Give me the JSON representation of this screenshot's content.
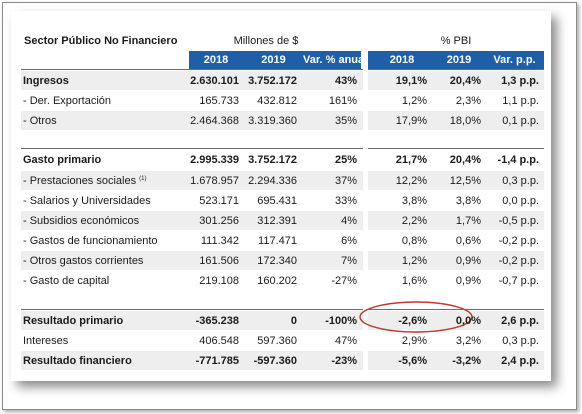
{
  "table": {
    "title": "Sector Público No Financiero",
    "group_millones": "Millones de $",
    "group_pbi": "% PBI",
    "columns": [
      "2018",
      "2019",
      "Var. % anual",
      "2018",
      "2019",
      "Var. p.p."
    ],
    "rows": [
      {
        "label": "Ingresos",
        "bold": true,
        "cells": [
          "2.630.101",
          "3.752.172",
          "43%",
          "19,1%",
          "20,4%",
          "1,3 p.p."
        ]
      },
      {
        "label": "- Der. Exportación",
        "bold": false,
        "cells": [
          "165.733",
          "432.812",
          "161%",
          "1,2%",
          "2,3%",
          "1,1 p.p."
        ]
      },
      {
        "label": "- Otros",
        "bold": false,
        "cells": [
          "2.464.368",
          "3.319.360",
          "35%",
          "17,9%",
          "18,0%",
          "0,1 p.p."
        ]
      },
      {
        "label": "Gasto primario",
        "bold": true,
        "cells": [
          "2.995.339",
          "3.752.172",
          "25%",
          "21,7%",
          "20,4%",
          "-1,4 p.p."
        ]
      },
      {
        "label": "- Prestaciones sociales",
        "sup": "(1)",
        "bold": false,
        "cells": [
          "1.678.957",
          "2.294.336",
          "37%",
          "12,2%",
          "12,5%",
          "0,3 p.p."
        ]
      },
      {
        "label": "- Salarios y Universidades",
        "bold": false,
        "cells": [
          "523.171",
          "695.431",
          "33%",
          "3,8%",
          "3,8%",
          "0,0 p.p."
        ]
      },
      {
        "label": "- Subsidios económicos",
        "bold": false,
        "cells": [
          "301.256",
          "312.391",
          "4%",
          "2,2%",
          "1,7%",
          "-0,5 p.p."
        ]
      },
      {
        "label": "- Gastos de funcionamiento",
        "bold": false,
        "cells": [
          "111.342",
          "117.471",
          "6%",
          "0,8%",
          "0,6%",
          "-0,2 p.p."
        ]
      },
      {
        "label": "- Otros gastos corrientes",
        "bold": false,
        "cells": [
          "161.506",
          "172.340",
          "7%",
          "1,2%",
          "0,9%",
          "-0,2 p.p."
        ]
      },
      {
        "label": "- Gasto de capital",
        "bold": false,
        "cells": [
          "219.108",
          "160.202",
          "-27%",
          "1,6%",
          "0,9%",
          "-0,7 p.p."
        ]
      },
      {
        "label": "Resultado primario",
        "bold": true,
        "cells": [
          "-365.238",
          "0",
          "-100%",
          "-2,6%",
          "0,0%",
          "2,6 p.p."
        ]
      },
      {
        "label": "Intereses",
        "bold": false,
        "cells": [
          "406.548",
          "597.360",
          "47%",
          "2,9%",
          "3,2%",
          "0,3 p.p."
        ]
      },
      {
        "label": "Resultado financiero",
        "bold": true,
        "cells": [
          "-771.785",
          "-597.360",
          "-23%",
          "-5,6%",
          "-3,2%",
          "2,4 p.p."
        ]
      }
    ]
  },
  "colors": {
    "header_blue": "#1f5fa8",
    "row_grey": "#eeeeee",
    "annotation_red": "#c0392b"
  }
}
